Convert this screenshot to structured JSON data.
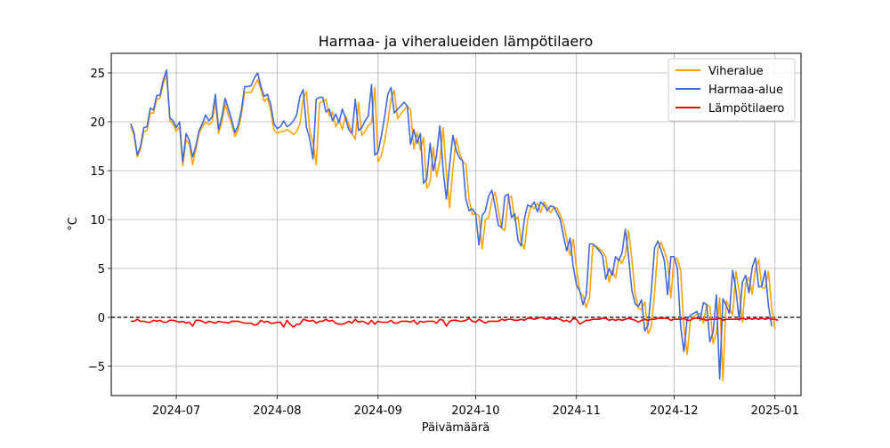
{
  "chart_data": {
    "type": "line",
    "title": "Harmaa- ja viheralueiden lämpötilaero",
    "xlabel": "Päivämäärä",
    "ylabel": "°C",
    "x_axis": {
      "start": "2024-06-17",
      "end": "2024-12-31",
      "range": [
        "2024-06-11",
        "2025-01-09"
      ],
      "ticks": [
        {
          "date": "2024-07-01",
          "label": "2024-07"
        },
        {
          "date": "2024-08-01",
          "label": "2024-08"
        },
        {
          "date": "2024-09-01",
          "label": "2024-09"
        },
        {
          "date": "2024-10-01",
          "label": "2024-10"
        },
        {
          "date": "2024-11-01",
          "label": "2024-11"
        },
        {
          "date": "2024-12-01",
          "label": "2024-12"
        },
        {
          "date": "2025-01-01",
          "label": "2025-01"
        }
      ]
    },
    "ylim": [
      -8.0,
      27.0
    ],
    "y_ticks": [
      -5,
      0,
      5,
      10,
      15,
      20,
      25
    ],
    "y_tick_labels": [
      "−5",
      "0",
      "5",
      "10",
      "15",
      "20",
      "25"
    ],
    "grid": true,
    "zero_line": {
      "y": 0,
      "style": "dashed",
      "color": "#000000"
    },
    "legend": {
      "position": "top-right"
    },
    "series": [
      {
        "name": "Viheralue",
        "color": "#ffa500",
        "values": [
          19.5,
          18.6,
          16.4,
          17.2,
          19.0,
          19.1,
          20.9,
          20.9,
          22.3,
          22.4,
          23.9,
          24.8,
          20.1,
          19.8,
          19.0,
          19.5,
          15.5,
          18.2,
          17.7,
          15.6,
          17.2,
          18.8,
          19.5,
          20.0,
          19.7,
          20.0,
          22.1,
          18.8,
          20.0,
          21.8,
          20.7,
          19.8,
          18.5,
          19.2,
          20.7,
          23.0,
          23.0,
          23.0,
          23.7,
          24.3,
          23.3,
          22.1,
          22.4,
          21.2,
          19.2,
          18.8,
          19.0,
          19.0,
          19.2,
          19.0,
          18.7,
          19.0,
          19.8,
          22.3,
          23.1,
          19.0,
          18.0,
          15.6,
          21.9,
          22.1,
          22.3,
          20.6,
          21.0,
          19.5,
          20.2,
          19.2,
          20.6,
          19.8,
          18.8,
          18.2,
          22.0,
          18.6,
          19.0,
          19.6,
          19.9,
          23.5,
          15.9,
          16.5,
          18.0,
          20.0,
          22.3,
          23.2,
          20.3,
          20.8,
          21.2,
          21.6,
          21.2,
          17.2,
          18.9,
          17.1,
          18.4,
          13.2,
          13.8,
          17.4,
          14.4,
          16.0,
          19.4,
          14.8,
          11.2,
          15.2,
          18.3,
          16.9,
          15.9,
          15.7,
          12.0,
          10.5,
          10.6,
          10.4,
          7.0,
          10.0,
          10.2,
          12.0,
          12.8,
          10.9,
          9.1,
          8.9,
          12.2,
          12.4,
          9.9,
          10.3,
          7.7,
          7.0,
          10.0,
          11.4,
          11.1,
          11.7,
          10.7,
          11.8,
          11.3,
          10.7,
          11.2,
          11.2,
          10.5,
          9.6,
          8.0,
          6.3,
          8.0,
          5.0,
          2.6,
          2.2,
          1.0,
          2.0,
          7.3,
          7.3,
          7.0,
          6.7,
          6.2,
          3.6,
          4.8,
          4.0,
          6.0,
          5.5,
          6.4,
          8.9,
          6.0,
          2.5,
          0.9,
          0.8,
          1.6,
          -1.7,
          -1.0,
          2.5,
          7.0,
          7.7,
          6.8,
          5.7,
          2.0,
          6.0,
          6.0,
          4.8,
          -1.0,
          -3.8,
          -0.3,
          0.1,
          0.3,
          0.4,
          -0.6,
          1.3,
          1.1,
          -2.7,
          -1.6,
          2.0,
          -6.5,
          1.7,
          1.0,
          0.2,
          4.7,
          2.6,
          -0.5,
          3.5,
          4.1,
          2.4,
          5.0,
          5.9,
          3.0,
          3.0,
          4.7,
          1.0,
          -1.2
        ]
      },
      {
        "name": "Harmaa-alue",
        "color": "#4169e1",
        "values": [
          19.8,
          18.9,
          16.6,
          17.5,
          19.4,
          19.5,
          21.4,
          21.2,
          22.7,
          22.7,
          24.3,
          25.3,
          20.4,
          20.1,
          19.4,
          20.0,
          15.9,
          18.8,
          18.1,
          16.4,
          17.5,
          19.1,
          19.8,
          20.7,
          20.1,
          20.5,
          22.8,
          19.2,
          20.5,
          22.4,
          21.3,
          20.2,
          18.9,
          19.6,
          21.2,
          23.6,
          23.6,
          23.7,
          24.5,
          25.0,
          23.6,
          22.6,
          22.8,
          21.8,
          19.8,
          19.3,
          19.5,
          20.1,
          19.5,
          19.7,
          20.1,
          20.7,
          22.6,
          23.3,
          19.4,
          18.3,
          16.2,
          22.3,
          22.5,
          22.5,
          21.0,
          21.3,
          20.1,
          20.8,
          19.9,
          21.3,
          20.4,
          19.2,
          18.8,
          22.3,
          19.1,
          19.4,
          20.1,
          20.6,
          23.8,
          16.6,
          16.9,
          18.5,
          20.5,
          22.8,
          23.5,
          20.9,
          21.3,
          21.6,
          22.0,
          21.6,
          17.7,
          19.2,
          17.8,
          18.8,
          13.7,
          14.2,
          17.8,
          15.0,
          16.6,
          19.6,
          15.1,
          12.1,
          15.6,
          18.6,
          17.1,
          16.3,
          16.0,
          12.1,
          10.9,
          11.1,
          10.6,
          7.4,
          10.4,
          10.9,
          12.4,
          13.0,
          11.3,
          9.4,
          9.2,
          12.4,
          12.6,
          10.2,
          10.6,
          7.9,
          7.3,
          10.1,
          11.5,
          11.3,
          11.8,
          10.8,
          11.8,
          11.5,
          10.9,
          11.4,
          11.3,
          10.7,
          10.0,
          8.3,
          6.8,
          8.1,
          5.2,
          3.3,
          2.7,
          1.3,
          2.3,
          7.5,
          7.5,
          7.2,
          6.8,
          6.3,
          3.9,
          5.0,
          4.3,
          6.2,
          5.8,
          6.6,
          9.0,
          6.2,
          2.8,
          1.4,
          1.1,
          1.8,
          -1.4,
          -0.8,
          2.7,
          7.1,
          7.8,
          6.9,
          5.8,
          2.3,
          6.2,
          6.2,
          5.0,
          -0.9,
          -3.5,
          -0.2,
          0.2,
          0.4,
          0.6,
          -0.3,
          1.5,
          1.3,
          -2.5,
          -1.5,
          2.3,
          -6.3,
          1.9,
          1.2,
          0.4,
          4.8,
          2.8,
          -0.3,
          3.6,
          4.3,
          2.5,
          5.1,
          6.1,
          3.1,
          3.2,
          4.8,
          1.2,
          -0.9
        ]
      },
      {
        "name": "Lämpötilaero",
        "color": "#ff0000",
        "values": [
          -0.4,
          -0.4,
          -0.2,
          -0.4,
          -0.4,
          -0.5,
          -0.5,
          -0.3,
          -0.4,
          -0.3,
          -0.5,
          -0.5,
          -0.3,
          -0.3,
          -0.4,
          -0.5,
          -0.4,
          -0.6,
          -0.5,
          -0.9,
          -0.3,
          -0.3,
          -0.4,
          -0.6,
          -0.4,
          -0.5,
          -0.6,
          -0.4,
          -0.5,
          -0.5,
          -0.6,
          -0.4,
          -0.4,
          -0.4,
          -0.5,
          -0.6,
          -0.6,
          -0.6,
          -0.8,
          -0.7,
          -0.3,
          -0.5,
          -0.4,
          -0.6,
          -0.6,
          -0.5,
          -0.5,
          -1.0,
          -0.3,
          -0.7,
          -1.0,
          -0.7,
          -0.7,
          -0.2,
          -0.3,
          -0.4,
          -0.3,
          -0.6,
          -0.4,
          -0.4,
          -0.2,
          -0.4,
          -0.3,
          -0.6,
          -0.7,
          -0.7,
          -0.6,
          -0.4,
          -0.6,
          -0.2,
          -0.5,
          -0.4,
          -0.5,
          -0.7,
          -0.3,
          -0.7,
          -0.4,
          -0.5,
          -0.5,
          -0.5,
          -0.3,
          -0.6,
          -0.6,
          -0.4,
          -0.4,
          -0.4,
          -0.5,
          -0.3,
          -0.7,
          -0.4,
          -0.5,
          -0.4,
          -0.4,
          -0.4,
          -0.6,
          -0.2,
          -0.3,
          -0.9,
          -0.4,
          -0.3,
          -0.3,
          -0.4,
          -0.4,
          -0.3,
          -0.1,
          -0.4,
          -0.5,
          -0.2,
          -0.4,
          -0.6,
          -0.4,
          -0.4,
          -0.4,
          -0.4,
          -0.2,
          -0.3,
          -0.2,
          -0.2,
          -0.3,
          -0.3,
          -0.2,
          -0.3,
          -0.1,
          -0.1,
          -0.2,
          -0.1,
          -0.0,
          -0.1,
          -0.2,
          -0.1,
          -0.2,
          -0.1,
          -0.2,
          -0.4,
          -0.3,
          -0.5,
          -0.1,
          -0.2,
          -0.7,
          -0.5,
          -0.3,
          -0.3,
          -0.2,
          -0.2,
          -0.2,
          -0.1,
          -0.1,
          -0.3,
          -0.2,
          -0.3,
          -0.2,
          -0.3,
          -0.2,
          -0.1,
          -0.2,
          -0.3,
          -0.5,
          -0.3,
          -0.2,
          -0.3,
          -0.2,
          -0.2,
          -0.1,
          -0.1,
          -0.1,
          -0.1,
          -0.3,
          -0.2,
          -0.2,
          -0.2,
          -0.1,
          -0.3,
          -0.3,
          -0.1,
          -0.1,
          -0.1,
          -0.2,
          -0.3,
          -0.2,
          -0.2,
          -0.2,
          -0.1,
          -0.3,
          -0.2,
          -0.2,
          -0.2,
          -0.2,
          -0.2,
          -0.1,
          -0.2,
          -0.1,
          -0.2,
          -0.1,
          -0.2,
          -0.1,
          -0.2,
          -0.1,
          -0.2,
          -0.2,
          -0.3
        ]
      }
    ]
  }
}
